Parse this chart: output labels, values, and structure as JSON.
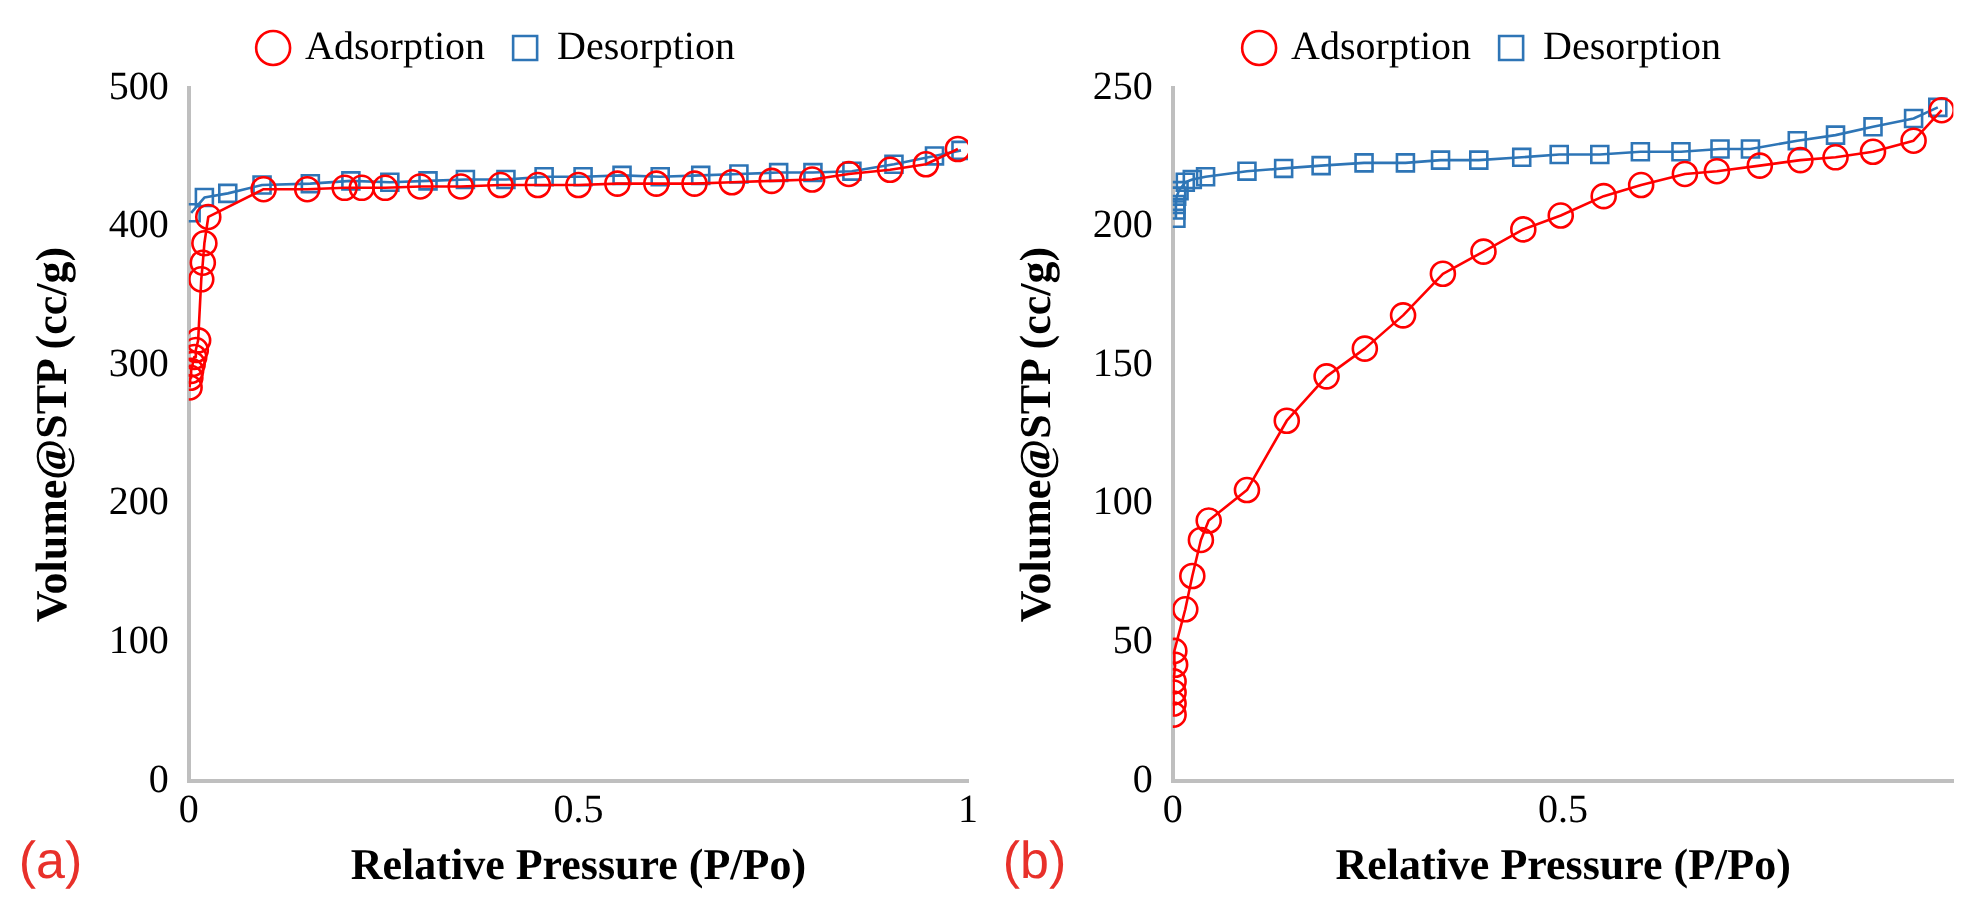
{
  "chart_data": [
    {
      "type": "line",
      "xlabel": "Relative Pressure (P/Po)",
      "ylabel": "Volume@STP (cc/g)",
      "xlim": [
        0,
        1
      ],
      "xticks": [
        0,
        0.5,
        1
      ],
      "ylim": [
        0,
        500
      ],
      "yticks": [
        0,
        100,
        200,
        300,
        400,
        500
      ],
      "grid": false,
      "legend": "top",
      "line_style": "solid",
      "annotations": [
        "(a)"
      ],
      "series": [
        {
          "name": "Adsorption",
          "color": "#ff0000",
          "marker": "circle",
          "x": [
            0.001,
            0.002,
            0.003,
            0.005,
            0.007,
            0.009,
            0.012,
            0.016,
            0.018,
            0.02,
            0.025,
            0.096,
            0.152,
            0.2,
            0.222,
            0.252,
            0.297,
            0.349,
            0.4,
            0.448,
            0.5,
            0.55,
            0.6,
            0.649,
            0.697,
            0.748,
            0.8,
            0.847,
            0.9,
            0.946,
            0.987
          ],
          "values": [
            284,
            291,
            296,
            301,
            306,
            311,
            318,
            362,
            374,
            388,
            407,
            427,
            427,
            428,
            428,
            428,
            429,
            429,
            430,
            430,
            430,
            431,
            431,
            431,
            432,
            433,
            434,
            438,
            441,
            445,
            456
          ]
        },
        {
          "name": "Desorption",
          "color": "#2e75b6",
          "marker": "square",
          "x": [
            0.003,
            0.02,
            0.05,
            0.094,
            0.156,
            0.208,
            0.258,
            0.307,
            0.355,
            0.407,
            0.456,
            0.506,
            0.556,
            0.605,
            0.657,
            0.706,
            0.757,
            0.801,
            0.851,
            0.905,
            0.957,
            0.991
          ],
          "values": [
            410,
            421,
            424,
            430,
            431,
            433,
            432,
            433,
            434,
            434,
            436,
            436,
            437,
            436,
            437,
            438,
            439,
            439,
            440,
            445,
            451,
            455
          ]
        }
      ]
    },
    {
      "type": "line",
      "xlabel": "Relative Pressure (P/Po)",
      "ylabel": "Volume@STP (cc/g)",
      "xlim": [
        0,
        1
      ],
      "xticks": [
        0,
        0.5
      ],
      "ylim": [
        0,
        250
      ],
      "yticks": [
        0,
        50,
        100,
        150,
        200,
        250
      ],
      "grid": false,
      "legend": "top",
      "line_style": "solid",
      "annotations": [
        "(b)"
      ],
      "series": [
        {
          "name": "Adsorption",
          "color": "#ff0000",
          "marker": "circle",
          "x": [
            0.001,
            0.001,
            0.001,
            0.001,
            0.003,
            0.002,
            0.016,
            0.025,
            0.036,
            0.046,
            0.095,
            0.146,
            0.197,
            0.246,
            0.295,
            0.346,
            0.398,
            0.449,
            0.497,
            0.552,
            0.6,
            0.656,
            0.697,
            0.752,
            0.804,
            0.849,
            0.897,
            0.949,
            0.985
          ],
          "values": [
            24,
            28,
            32,
            36,
            42,
            47,
            62,
            74,
            87,
            94,
            105,
            130,
            146,
            156,
            168,
            183,
            191,
            199,
            204,
            211,
            215,
            219,
            220,
            222,
            224,
            225,
            227,
            231,
            242
          ]
        },
        {
          "name": "Desorption",
          "color": "#2e75b6",
          "marker": "square",
          "x": [
            0.004,
            0.004,
            0.004,
            0.005,
            0.008,
            0.016,
            0.025,
            0.042,
            0.095,
            0.142,
            0.19,
            0.245,
            0.298,
            0.343,
            0.392,
            0.447,
            0.495,
            0.547,
            0.599,
            0.651,
            0.701,
            0.74,
            0.8,
            0.849,
            0.897,
            0.949,
            0.98
          ],
          "values": [
            203,
            206,
            208,
            211,
            213,
            216,
            217,
            218,
            220,
            221,
            222,
            223,
            223,
            224,
            224,
            225,
            226,
            226,
            227,
            227,
            228,
            228,
            231,
            233,
            236,
            239,
            243
          ]
        }
      ]
    }
  ]
}
